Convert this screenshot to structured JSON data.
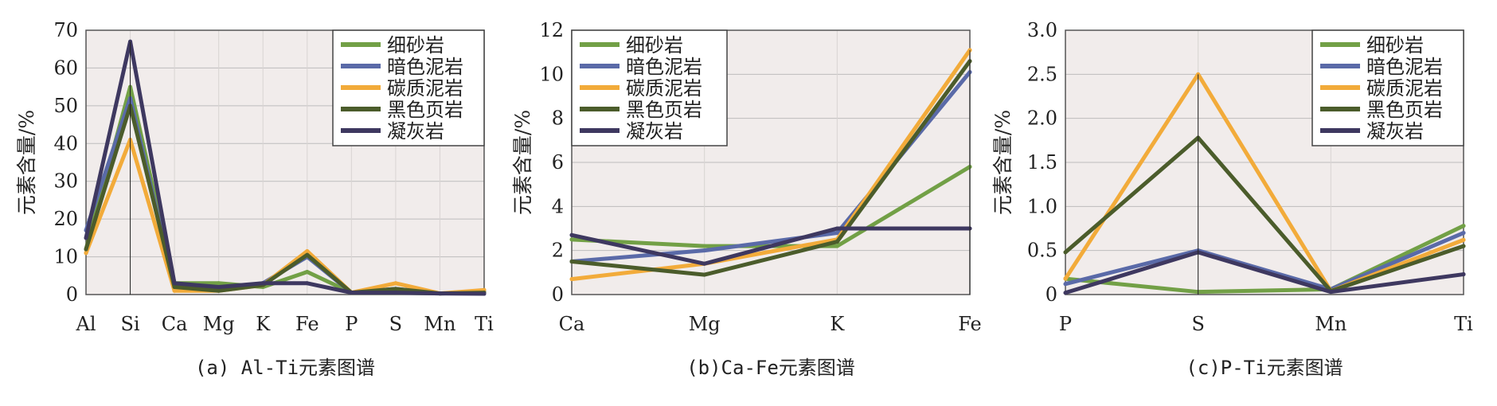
{
  "chart_data": [
    {
      "type": "line",
      "caption": "(a) Al-Ti元素图谱",
      "ylabel": "元素含量/%",
      "xlabel": "",
      "categories": [
        "Al",
        "Si",
        "Ca",
        "Mg",
        "K",
        "Fe",
        "P",
        "S",
        "Mn",
        "Ti"
      ],
      "ylim": [
        0,
        70
      ],
      "yticks": [
        "0",
        "10",
        "20",
        "30",
        "40",
        "50",
        "60",
        "70"
      ],
      "grid": true,
      "legend_position": "top-right",
      "series": [
        {
          "name": "细砂岩",
          "color": "#72a046",
          "values": [
            12,
            55,
            3,
            3,
            2,
            6,
            0.5,
            0.5,
            0.3,
            0.5
          ]
        },
        {
          "name": "暗色泥岩",
          "color": "#5a6aa8",
          "values": [
            17,
            52,
            2,
            1.5,
            3,
            10,
            0.5,
            1.5,
            0.3,
            0.7
          ]
        },
        {
          "name": "碳质泥岩",
          "color": "#f2ab3a",
          "values": [
            11,
            41,
            1,
            1,
            2.5,
            11.5,
            0.5,
            3,
            0.3,
            1.2
          ]
        },
        {
          "name": "黑色页岩",
          "color": "#4b5c2b",
          "values": [
            12,
            50,
            2,
            1,
            2.5,
            10.5,
            0.5,
            1.5,
            0.3,
            0.5
          ]
        },
        {
          "name": "凝灰岩",
          "color": "#3e3860",
          "values": [
            15,
            67,
            3,
            2,
            3,
            3,
            0.5,
            0.5,
            0.3,
            0.2
          ]
        }
      ]
    },
    {
      "type": "line",
      "caption": "(b)Ca-Fe元素图谱",
      "ylabel": "元素含量/%",
      "xlabel": "",
      "categories": [
        "Ca",
        "Mg",
        "K",
        "Fe"
      ],
      "ylim": [
        0,
        12
      ],
      "yticks": [
        "0",
        "2",
        "4",
        "6",
        "8",
        "10",
        "12"
      ],
      "grid": true,
      "legend_position": "top-left",
      "series": [
        {
          "name": "细砂岩",
          "color": "#72a046",
          "values": [
            2.5,
            2.2,
            2.2,
            5.8
          ]
        },
        {
          "name": "暗色泥岩",
          "color": "#5a6aa8",
          "values": [
            1.5,
            2.0,
            2.8,
            10.1
          ]
        },
        {
          "name": "碳质泥岩",
          "color": "#f2ab3a",
          "values": [
            0.7,
            1.4,
            2.5,
            11.1
          ]
        },
        {
          "name": "黑色页岩",
          "color": "#4b5c2b",
          "values": [
            1.5,
            0.9,
            2.4,
            10.6
          ]
        },
        {
          "name": "凝灰岩",
          "color": "#3e3860",
          "values": [
            2.7,
            1.4,
            3.0,
            3.0
          ]
        }
      ]
    },
    {
      "type": "line",
      "caption": "(c)P-Ti元素图谱",
      "ylabel": "元素含量/%",
      "xlabel": "",
      "categories": [
        "P",
        "S",
        "Mn",
        "Ti"
      ],
      "ylim": [
        0,
        3
      ],
      "yticks": [
        "0",
        "0.5",
        "1.0",
        "1.5",
        "2.0",
        "2.5",
        "3.0"
      ],
      "grid": true,
      "legend_position": "top-right",
      "series": [
        {
          "name": "细砂岩",
          "color": "#72a046",
          "values": [
            0.18,
            0.03,
            0.06,
            0.78
          ]
        },
        {
          "name": "暗色泥岩",
          "color": "#5a6aa8",
          "values": [
            0.12,
            0.5,
            0.06,
            0.7
          ]
        },
        {
          "name": "碳质泥岩",
          "color": "#f2ab3a",
          "values": [
            0.18,
            2.5,
            0.04,
            0.62
          ]
        },
        {
          "name": "黑色页岩",
          "color": "#4b5c2b",
          "values": [
            0.48,
            1.78,
            0.04,
            0.55
          ]
        },
        {
          "name": "凝灰岩",
          "color": "#3e3860",
          "values": [
            0.02,
            0.48,
            0.03,
            0.23
          ]
        }
      ]
    }
  ]
}
